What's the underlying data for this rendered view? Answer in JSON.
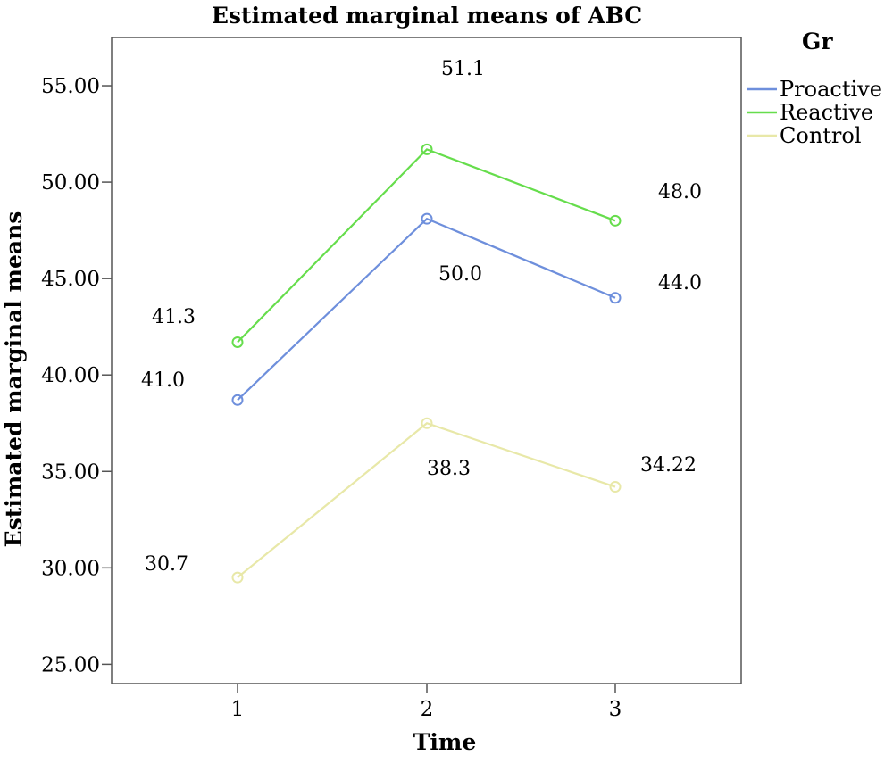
{
  "chart_data": {
    "type": "line",
    "title": "Estimated marginal means of ABC",
    "xlabel": "Time",
    "ylabel": "Estimated marginal means",
    "x": [
      "1",
      "2",
      "3"
    ],
    "ylim": [
      24,
      57.5
    ],
    "yticks": [
      "25.00",
      "30.00",
      "35.00",
      "40.00",
      "45.00",
      "50.00",
      "55.00"
    ],
    "grid": false,
    "legend": {
      "title": "Gr",
      "placement": "top-right"
    },
    "series": [
      {
        "name": "Proactive",
        "color": "#6e8fdc",
        "values": [
          38.7,
          48.1,
          44.0
        ]
      },
      {
        "name": "Reactive",
        "color": "#66dd4c",
        "values": [
          41.7,
          51.7,
          48.0
        ]
      },
      {
        "name": "Control",
        "color": "#e8e8a8",
        "values": [
          29.5,
          37.5,
          34.2
        ]
      }
    ],
    "annotations": [
      "51.1",
      "48.0",
      "50.0",
      "44.0",
      "41.3",
      "41.0",
      "38.3",
      "34.22",
      "30.7"
    ]
  }
}
